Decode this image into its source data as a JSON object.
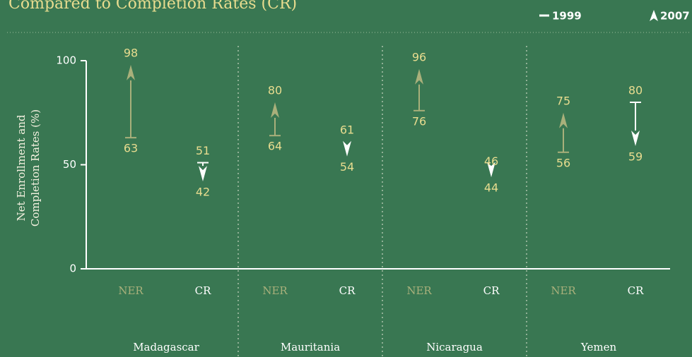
{
  "chart_data": {
    "type": "arrow",
    "title": "Compared to Completion Rates (CR)",
    "ylabel": "Net Enrollment and Completion Rates (%)",
    "groups": [
      "Madagascar",
      "Mauritania",
      "Nicaragua",
      "Yemen"
    ],
    "categories": [
      "NER",
      "CR",
      "NER",
      "CR",
      "NER",
      "CR",
      "NER",
      "CR"
    ],
    "colors": [
      "#a9b07b",
      "#ffffff",
      "#a9b07b",
      "#ffffff",
      "#a9b07b",
      "#ffffff",
      "#a9b07b",
      "#ffffff"
    ],
    "series": [
      {
        "name": "1999",
        "values": [
          63,
          51,
          64,
          61,
          76,
          46,
          56,
          80
        ]
      },
      {
        "name": "2007",
        "values": [
          98,
          42,
          80,
          54,
          96,
          44,
          75,
          59
        ]
      }
    ],
    "ylim": [
      0,
      100
    ],
    "yticks": [
      0,
      50,
      100
    ]
  }
}
